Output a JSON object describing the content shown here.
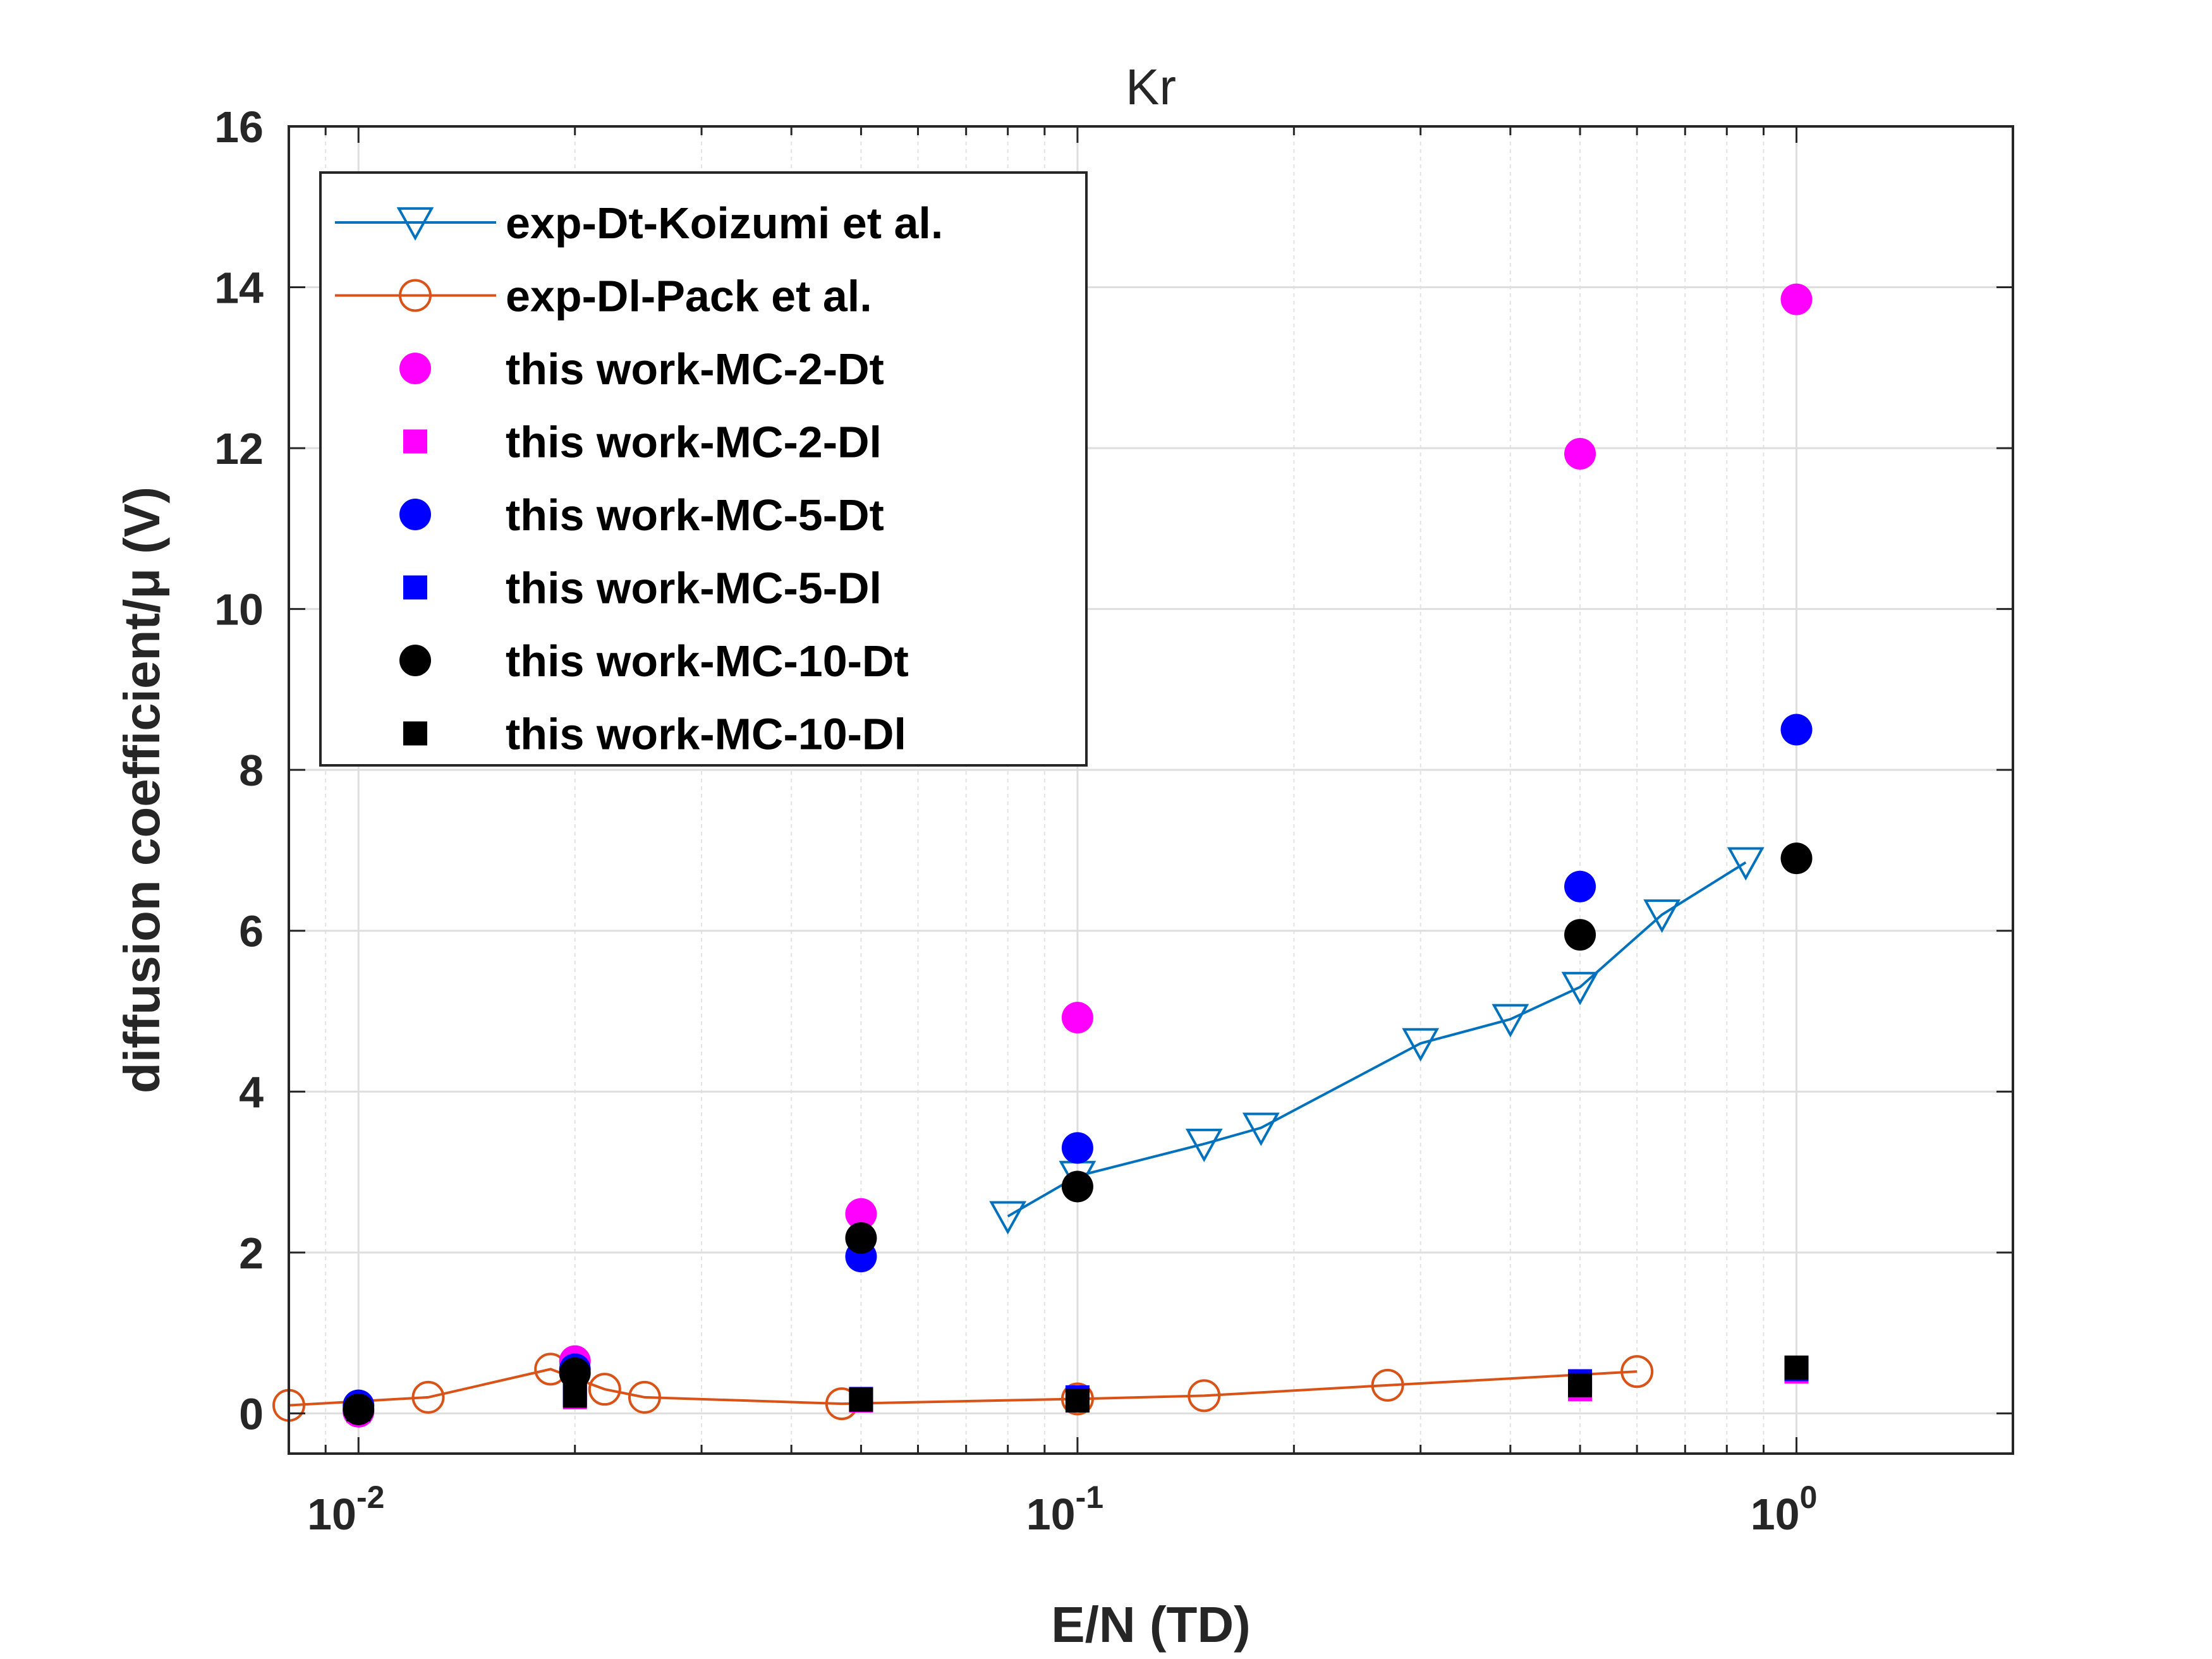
{
  "chart_data": {
    "type": "scatter",
    "title": "Kr",
    "xlabel": "E/N (TD)",
    "ylabel": "diffusion coefficient/μ (V)",
    "xscale": "log",
    "xlim": [
      0.008,
      2
    ],
    "ylim": [
      -0.5,
      16
    ],
    "grid": true,
    "legend_position": "top-left",
    "x_ticks": [
      {
        "value": 0.01,
        "base": "10",
        "exp": "-2"
      },
      {
        "value": 0.1,
        "base": "10",
        "exp": "-1"
      },
      {
        "value": 1,
        "base": "10",
        "exp": "0"
      }
    ],
    "y_ticks": [
      {
        "value": 0,
        "label": "0"
      },
      {
        "value": 2,
        "label": "2"
      },
      {
        "value": 4,
        "label": "4"
      },
      {
        "value": 6,
        "label": "6"
      },
      {
        "value": 8,
        "label": "8"
      },
      {
        "value": 10,
        "label": "10"
      },
      {
        "value": 12,
        "label": "12"
      },
      {
        "value": 14,
        "label": "14"
      },
      {
        "value": 16,
        "label": "16"
      }
    ],
    "series": [
      {
        "name": "exp-Dt-Koizumi et al.",
        "style": "line-triangle",
        "color": "#0072BD",
        "x": [
          0.08,
          0.1,
          0.15,
          0.18,
          0.3,
          0.4,
          0.5,
          0.65,
          0.85
        ],
        "y": [
          2.45,
          2.95,
          3.35,
          3.55,
          4.6,
          4.9,
          5.3,
          6.2,
          6.85
        ]
      },
      {
        "name": "exp-Dl-Pack et al.",
        "style": "line-circle",
        "color": "#D95319",
        "x": [
          0.008,
          0.0125,
          0.0185,
          0.022,
          0.025,
          0.047,
          0.1,
          0.15,
          0.27,
          0.6
        ],
        "y": [
          0.1,
          0.2,
          0.55,
          0.3,
          0.2,
          0.12,
          0.18,
          0.22,
          0.35,
          0.52
        ]
      },
      {
        "name": "this work-MC-2-Dt",
        "style": "filled-circle",
        "color": "#FF00FF",
        "x": [
          0.01,
          0.02,
          0.05,
          0.1,
          0.5,
          1
        ],
        "y": [
          0.02,
          0.65,
          2.48,
          4.92,
          11.93,
          13.85
        ]
      },
      {
        "name": "this work-MC-2-Dl",
        "style": "filled-square",
        "color": "#FF00FF",
        "x": [
          0.01,
          0.02,
          0.05,
          0.1,
          0.5,
          1
        ],
        "y": [
          0.03,
          0.2,
          0.16,
          0.17,
          0.3,
          0.52
        ]
      },
      {
        "name": "this work-MC-5-Dt",
        "style": "filled-circle",
        "color": "#0000FF",
        "x": [
          0.01,
          0.02,
          0.05,
          0.1,
          0.5,
          1
        ],
        "y": [
          0.1,
          0.55,
          1.95,
          3.3,
          6.55,
          8.5
        ]
      },
      {
        "name": "this work-MC-5-Dl",
        "style": "filled-square",
        "color": "#0000FF",
        "x": [
          0.01,
          0.02,
          0.05,
          0.1,
          0.5,
          1
        ],
        "y": [
          0.06,
          0.25,
          0.18,
          0.2,
          0.4,
          0.55
        ]
      },
      {
        "name": "this work-MC-10-Dt",
        "style": "filled-circle",
        "color": "#000000",
        "x": [
          0.01,
          0.02,
          0.05,
          0.1,
          0.5,
          1
        ],
        "y": [
          0.05,
          0.5,
          2.18,
          2.82,
          5.95,
          6.9
        ]
      },
      {
        "name": "this work-MC-10-Dl",
        "style": "filled-square",
        "color": "#000000",
        "x": [
          0.01,
          0.02,
          0.05,
          0.1,
          0.5,
          1
        ],
        "y": [
          0.05,
          0.22,
          0.17,
          0.16,
          0.35,
          0.57
        ]
      }
    ]
  }
}
